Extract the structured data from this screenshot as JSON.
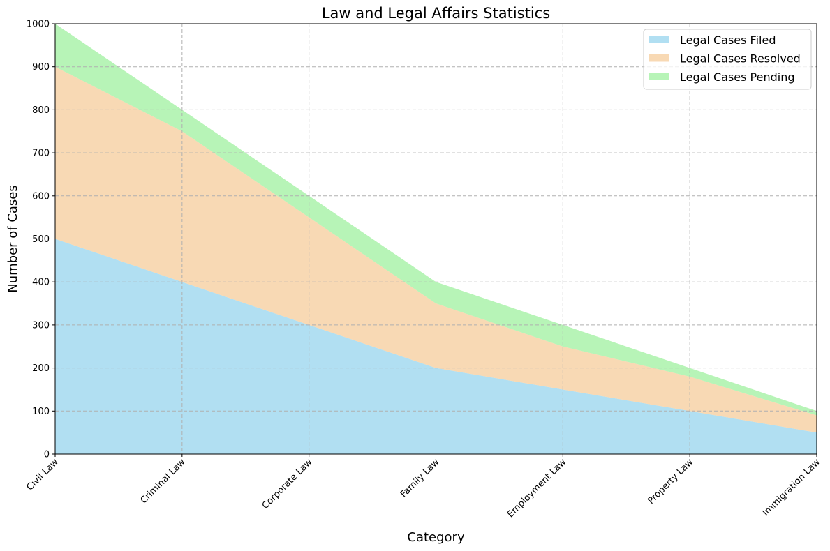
{
  "chart_data": {
    "type": "area",
    "stacked": true,
    "title": "Law and Legal Affairs Statistics",
    "xlabel": "Category",
    "ylabel": "Number of Cases",
    "categories": [
      "Civil Law",
      "Criminal Law",
      "Corporate Law",
      "Family Law",
      "Employment Law",
      "Property Law",
      "Immigration Law"
    ],
    "series": [
      {
        "name": "Legal Cases Filed",
        "values": [
          500,
          400,
          300,
          200,
          150,
          100,
          50
        ],
        "color": "#87CEEB"
      },
      {
        "name": "Legal Cases Resolved",
        "values": [
          400,
          350,
          250,
          150,
          100,
          80,
          40
        ],
        "color": "#F4C48C"
      },
      {
        "name": "Legal Cases Pending",
        "values": [
          100,
          50,
          50,
          50,
          50,
          20,
          10
        ],
        "color": "#90EE90"
      }
    ],
    "ylim": [
      0,
      1000
    ],
    "yticks": [
      "0",
      "100",
      "200",
      "300",
      "400",
      "500",
      "600",
      "700",
      "800",
      "900",
      "1000"
    ],
    "grid": true,
    "legend_position": "top-right"
  }
}
